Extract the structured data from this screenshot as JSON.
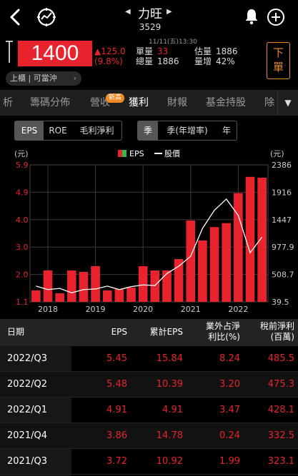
{
  "header": {
    "stock_name": "力旺",
    "stock_code": "3529",
    "prev_arrow": "◀",
    "next_arrow": "▶",
    "icons": [
      "back-arrow",
      "gauge",
      "bell",
      "plus-circle"
    ]
  },
  "quote": {
    "time": "11/11(五)13:30",
    "price": "1400",
    "change": "▲125.0",
    "change_pct": "(9.8%)",
    "unit_volume_label": "單量",
    "unit_volume": "33",
    "total_volume_label": "總量",
    "total_volume": "1886",
    "est_volume_label": "估量",
    "est_volume": "1886",
    "volume_increase_label": "量增",
    "volume_increase": "42%",
    "sell_label": "下單",
    "tag": "上櫃 | 可當沖",
    "tag_chevron": "›",
    "accent_up": "#e8232e",
    "accent_order": "#e98b32"
  },
  "tabs": {
    "items": [
      "析",
      "籌碼分佈",
      "營收",
      "獲利",
      "財報",
      "基金持股",
      "除"
    ],
    "active": "獲利",
    "new_badge": "新高",
    "dropdown": "▼"
  },
  "metric_toggle": {
    "items": [
      "EPS",
      "ROE",
      "毛利淨利"
    ],
    "active": "EPS"
  },
  "period_toggle": {
    "items": [
      "季",
      "季(年增率)",
      "年"
    ],
    "active": "季"
  },
  "chart_data": {
    "type": "bar",
    "left_unit": "(元)",
    "right_unit": "(元)",
    "legend": [
      {
        "name": "EPS",
        "colors": [
          "#e8232e",
          "#2db84c"
        ]
      },
      {
        "name": "股價",
        "color": "#ffffff"
      }
    ],
    "left_ticks": [
      "5.9",
      "4.9",
      "4.0",
      "3.0",
      "2.0",
      "1.1"
    ],
    "right_ticks": [
      "2386",
      "1916",
      "1447",
      "977.9",
      "508.7",
      "39.5"
    ],
    "ylim_left": [
      1.1,
      5.9
    ],
    "ylim_right": [
      39.5,
      2386
    ],
    "x_ticks": [
      {
        "label": "2018",
        "index": 1
      },
      {
        "label": "2019",
        "index": 5
      },
      {
        "label": "2020",
        "index": 9
      },
      {
        "label": "2021",
        "index": 13
      },
      {
        "label": "2022",
        "index": 17
      }
    ],
    "series": [
      {
        "name": "EPS",
        "values": [
          1.5,
          2.2,
          1.4,
          2.2,
          2.15,
          2.35,
          1.5,
          1.55,
          1.6,
          2.35,
          2.2,
          2.2,
          2.6,
          3.95,
          3.25,
          3.72,
          3.86,
          4.91,
          5.48,
          5.45
        ]
      },
      {
        "name": "股價",
        "values": [
          310,
          250,
          270,
          195,
          250,
          260,
          310,
          250,
          300,
          330,
          320,
          525,
          650,
          820,
          1300,
          1610,
          1800,
          1520,
          880,
          1150
        ]
      }
    ],
    "bar_color": "#e8232e",
    "line_color": "#ffffff"
  },
  "table": {
    "headers": [
      "日期",
      "EPS",
      "累計EPS",
      "業外占淨利比(%)",
      "稅前淨利(百萬)"
    ],
    "header_lines": [
      [
        "日期"
      ],
      [
        "EPS"
      ],
      [
        "累計EPS"
      ],
      [
        "業外占淨",
        "利比(%)"
      ],
      [
        "稅前淨利",
        "(百萬)"
      ]
    ],
    "rows": [
      [
        "2022/Q3",
        "5.45",
        "15.84",
        "8.24",
        "485.5"
      ],
      [
        "2022/Q2",
        "5.48",
        "10.39",
        "3.20",
        "475.3"
      ],
      [
        "2022/Q1",
        "4.91",
        "4.91",
        "3.47",
        "428.1"
      ],
      [
        "2021/Q4",
        "3.86",
        "14.78",
        "0.24",
        "332.5"
      ],
      [
        "2021/Q3",
        "3.72",
        "10.92",
        "1.99",
        "323.1"
      ]
    ]
  }
}
